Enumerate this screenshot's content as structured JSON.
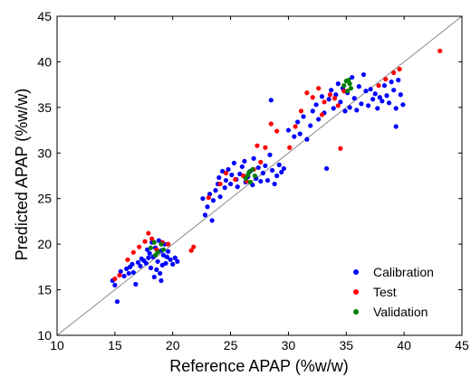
{
  "chart_data": {
    "type": "scatter",
    "title": "",
    "xlabel": "Reference APAP (%w/w)",
    "ylabel": "Predicted APAP (%w/w)",
    "xlim": [
      10,
      45
    ],
    "ylim": [
      10,
      45
    ],
    "xticks": [
      "10",
      "15",
      "20",
      "25",
      "30",
      "35",
      "40",
      "45"
    ],
    "yticks": [
      "10",
      "15",
      "20",
      "25",
      "30",
      "35",
      "40",
      "45"
    ],
    "grid": false,
    "legend_position": "bottom-right",
    "reference_line": {
      "from": [
        10,
        10
      ],
      "to": [
        45,
        45
      ],
      "color": "#888888"
    },
    "series": [
      {
        "name": "Calibration",
        "color": "#0000ff",
        "points": [
          [
            14.8,
            16.0
          ],
          [
            15.0,
            15.5
          ],
          [
            15.2,
            13.7
          ],
          [
            15.5,
            17.0
          ],
          [
            15.8,
            16.5
          ],
          [
            16.0,
            17.3
          ],
          [
            16.2,
            16.8
          ],
          [
            16.3,
            17.5
          ],
          [
            16.5,
            17.8
          ],
          [
            16.6,
            16.9
          ],
          [
            16.8,
            15.6
          ],
          [
            17.0,
            18.0
          ],
          [
            17.2,
            17.6
          ],
          [
            17.3,
            18.4
          ],
          [
            17.5,
            18.2
          ],
          [
            17.7,
            17.9
          ],
          [
            17.9,
            18.5
          ],
          [
            18.0,
            19.0
          ],
          [
            18.1,
            17.4
          ],
          [
            18.3,
            18.6
          ],
          [
            18.4,
            16.4
          ],
          [
            18.5,
            19.6
          ],
          [
            18.6,
            17.2
          ],
          [
            18.7,
            18.1
          ],
          [
            18.8,
            20.4
          ],
          [
            18.9,
            16.8
          ],
          [
            19.0,
            19.3
          ],
          [
            19.1,
            17.7
          ],
          [
            19.2,
            18.8
          ],
          [
            19.3,
            20.0
          ],
          [
            19.4,
            17.9
          ],
          [
            19.5,
            18.6
          ],
          [
            19.6,
            19.2
          ],
          [
            19.8,
            18.3
          ],
          [
            20.0,
            17.8
          ],
          [
            20.2,
            18.5
          ],
          [
            20.4,
            18.1
          ],
          [
            19.0,
            16.0
          ],
          [
            17.8,
            19.4
          ],
          [
            18.2,
            20.2
          ],
          [
            22.6,
            25.0
          ],
          [
            22.8,
            23.2
          ],
          [
            23.0,
            24.1
          ],
          [
            23.2,
            25.5
          ],
          [
            23.4,
            22.6
          ],
          [
            23.5,
            24.8
          ],
          [
            23.7,
            25.9
          ],
          [
            23.9,
            26.6
          ],
          [
            24.0,
            27.3
          ],
          [
            24.1,
            25.2
          ],
          [
            24.3,
            28.0
          ],
          [
            24.5,
            26.2
          ],
          [
            24.6,
            27.0
          ],
          [
            24.8,
            28.2
          ],
          [
            25.0,
            26.6
          ],
          [
            25.1,
            27.6
          ],
          [
            25.3,
            28.9
          ],
          [
            25.5,
            27.1
          ],
          [
            25.6,
            26.3
          ],
          [
            25.8,
            27.7
          ],
          [
            26.0,
            28.5
          ],
          [
            26.2,
            29.1
          ],
          [
            26.3,
            26.8
          ],
          [
            26.5,
            27.4
          ],
          [
            26.7,
            28.0
          ],
          [
            26.9,
            26.5
          ],
          [
            27.0,
            29.4
          ],
          [
            27.2,
            27.2
          ],
          [
            27.4,
            28.4
          ],
          [
            27.6,
            26.9
          ],
          [
            27.8,
            27.8
          ],
          [
            28.0,
            28.6
          ],
          [
            28.2,
            27.0
          ],
          [
            28.4,
            29.8
          ],
          [
            28.6,
            28.1
          ],
          [
            28.8,
            26.6
          ],
          [
            29.0,
            27.5
          ],
          [
            29.2,
            28.7
          ],
          [
            29.4,
            27.9
          ],
          [
            29.6,
            28.3
          ],
          [
            28.5,
            35.8
          ],
          [
            30.0,
            32.5
          ],
          [
            30.5,
            31.8
          ],
          [
            30.8,
            33.4
          ],
          [
            31.0,
            32.1
          ],
          [
            31.3,
            34.0
          ],
          [
            31.6,
            31.5
          ],
          [
            31.9,
            33.0
          ],
          [
            32.1,
            34.6
          ],
          [
            32.4,
            35.3
          ],
          [
            32.6,
            33.7
          ],
          [
            32.9,
            36.2
          ],
          [
            33.1,
            34.4
          ],
          [
            33.3,
            28.3
          ],
          [
            33.5,
            35.9
          ],
          [
            33.7,
            36.9
          ],
          [
            33.9,
            34.9
          ],
          [
            34.1,
            36.4
          ],
          [
            34.3,
            37.6
          ],
          [
            34.5,
            35.6
          ],
          [
            34.7,
            37.1
          ],
          [
            34.9,
            34.6
          ],
          [
            35.1,
            36.6
          ],
          [
            35.3,
            35.0
          ],
          [
            35.5,
            38.3
          ],
          [
            35.7,
            36.0
          ],
          [
            35.9,
            34.7
          ],
          [
            36.1,
            37.3
          ],
          [
            36.3,
            35.4
          ],
          [
            36.5,
            38.6
          ],
          [
            36.7,
            36.8
          ],
          [
            36.9,
            35.2
          ],
          [
            37.1,
            37.0
          ],
          [
            37.3,
            35.9
          ],
          [
            37.5,
            36.5
          ],
          [
            37.7,
            34.9
          ],
          [
            37.9,
            36.1
          ],
          [
            38.1,
            35.7
          ],
          [
            38.3,
            37.4
          ],
          [
            38.5,
            36.3
          ],
          [
            38.7,
            35.5
          ],
          [
            38.9,
            37.8
          ],
          [
            39.1,
            36.9
          ],
          [
            39.3,
            34.9
          ],
          [
            39.5,
            38.0
          ],
          [
            39.7,
            36.4
          ],
          [
            39.9,
            35.3
          ],
          [
            39.3,
            32.9
          ]
        ]
      },
      {
        "name": "Test",
        "color": "#ff0000",
        "points": [
          [
            15.0,
            16.2
          ],
          [
            15.4,
            16.6
          ],
          [
            16.1,
            18.3
          ],
          [
            16.6,
            19.1
          ],
          [
            17.1,
            19.7
          ],
          [
            17.6,
            20.3
          ],
          [
            17.9,
            21.2
          ],
          [
            18.2,
            20.6
          ],
          [
            18.6,
            19.4
          ],
          [
            19.1,
            20.2
          ],
          [
            19.6,
            20.0
          ],
          [
            21.6,
            19.3
          ],
          [
            21.8,
            19.7
          ],
          [
            23.1,
            25.1
          ],
          [
            24.1,
            26.6
          ],
          [
            24.6,
            27.8
          ],
          [
            25.4,
            27.1
          ],
          [
            26.1,
            27.5
          ],
          [
            27.0,
            28.2
          ],
          [
            27.6,
            29.0
          ],
          [
            28.0,
            30.6
          ],
          [
            28.5,
            33.2
          ],
          [
            27.3,
            30.8
          ],
          [
            29.0,
            32.4
          ],
          [
            30.1,
            30.6
          ],
          [
            30.6,
            32.9
          ],
          [
            31.1,
            34.6
          ],
          [
            31.6,
            36.6
          ],
          [
            32.1,
            36.1
          ],
          [
            32.6,
            37.1
          ],
          [
            33.1,
            35.6
          ],
          [
            33.6,
            36.4
          ],
          [
            34.0,
            36.0
          ],
          [
            34.3,
            35.2
          ],
          [
            34.5,
            30.5
          ],
          [
            34.8,
            36.8
          ],
          [
            37.8,
            37.4
          ],
          [
            38.4,
            38.1
          ],
          [
            39.1,
            38.8
          ],
          [
            39.6,
            39.2
          ],
          [
            43.1,
            41.2
          ],
          [
            26.4,
            26.9
          ],
          [
            32.9,
            34.2
          ]
        ]
      },
      {
        "name": "Validation",
        "color": "#008000",
        "points": [
          [
            18.1,
            19.6
          ],
          [
            18.4,
            20.2
          ],
          [
            18.7,
            19.1
          ],
          [
            19.0,
            20.0
          ],
          [
            19.2,
            19.4
          ],
          [
            18.5,
            18.8
          ],
          [
            26.3,
            27.2
          ],
          [
            26.6,
            27.9
          ],
          [
            26.9,
            28.2
          ],
          [
            27.1,
            27.5
          ],
          [
            26.7,
            26.8
          ],
          [
            26.5,
            27.6
          ],
          [
            34.8,
            37.4
          ],
          [
            35.0,
            37.9
          ],
          [
            35.2,
            38.0
          ],
          [
            35.4,
            37.1
          ],
          [
            35.1,
            36.8
          ],
          [
            35.3,
            37.6
          ]
        ]
      }
    ]
  }
}
